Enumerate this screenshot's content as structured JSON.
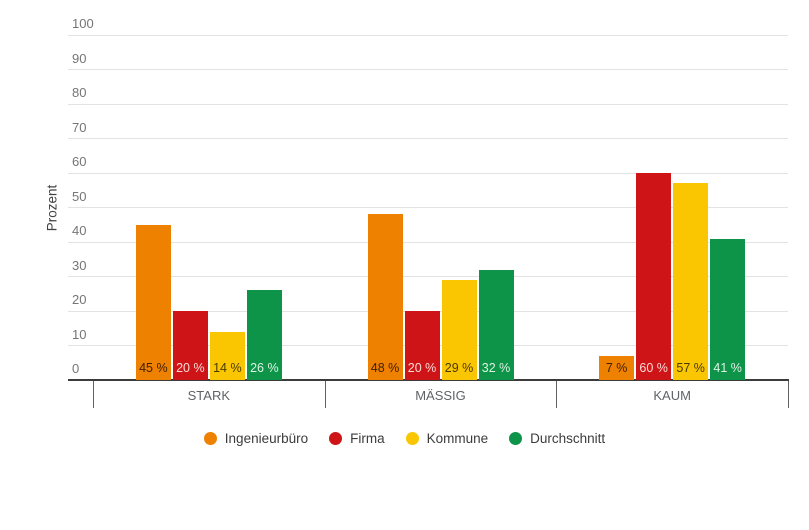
{
  "chart_data": {
    "type": "bar",
    "title": "",
    "categories": [
      "STARK",
      "MÄSSIG",
      "KAUM"
    ],
    "series": [
      {
        "name": "Ingenieurbüro",
        "color": "#EE8100",
        "label_color": "#402000",
        "values": [
          45,
          48,
          7
        ]
      },
      {
        "name": "Firma",
        "color": "#CE1417",
        "label_color": "#FADBD6",
        "values": [
          20,
          20,
          60
        ]
      },
      {
        "name": "Kommune",
        "color": "#FAC602",
        "label_color": "#4A3A00",
        "values": [
          14,
          29,
          57
        ]
      },
      {
        "name": "Durchschnitt",
        "color": "#0D9448",
        "label_color": "#DCF3E2",
        "values": [
          26,
          32,
          41
        ]
      }
    ],
    "xlabel": "",
    "ylabel": "Prozent",
    "ylim": [
      0,
      100
    ],
    "yticks": [
      0,
      10,
      20,
      30,
      40,
      50,
      60,
      70,
      80,
      90,
      100
    ],
    "value_label_suffix": " %",
    "grid": true,
    "legend_position": "bottom"
  },
  "colors": {
    "background": "#FFFFFF",
    "gridline": "#E3E3E3",
    "axis_line": "#3C3C3C",
    "axis_tick": "#616161",
    "y_tick_label": "#757575",
    "category_label": "#5F6368",
    "legend_label": "#3C3C3C"
  }
}
